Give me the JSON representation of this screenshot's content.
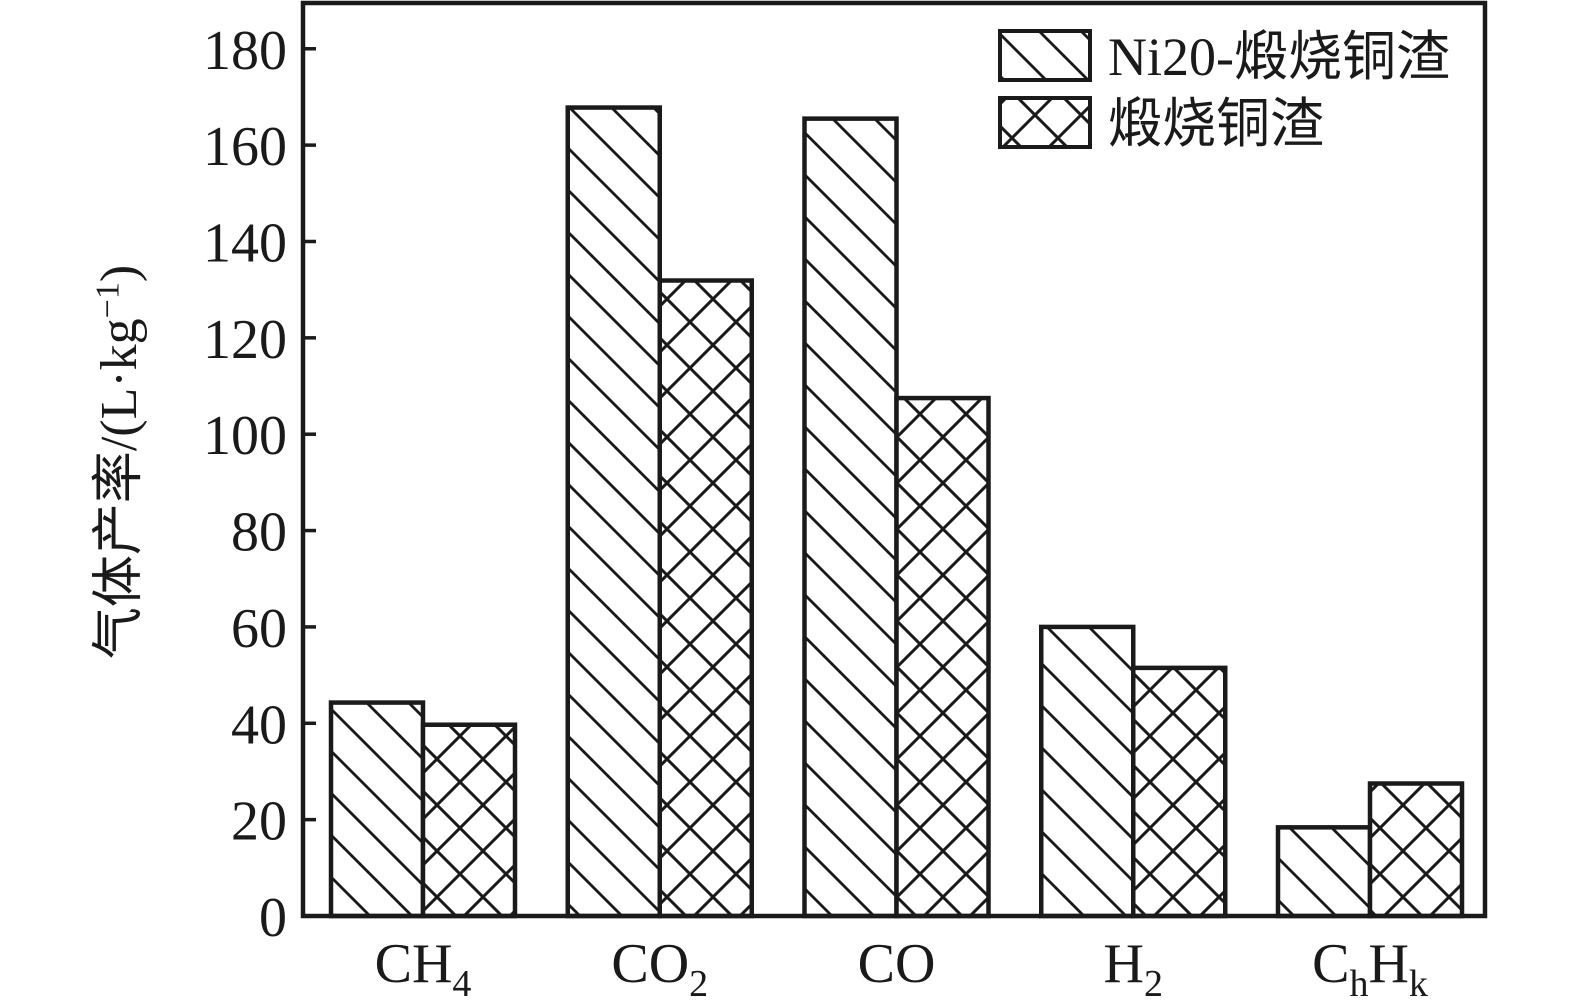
{
  "background": "#ffffff",
  "ink_color": "#1a1a1a",
  "chart_data": {
    "type": "bar",
    "title": "",
    "ylabel": "气体产率/(L·kg−1)",
    "ylabel_parts": [
      {
        "t": "气体产率/(L·kg"
      },
      {
        "t": "−1",
        "sup": true
      },
      {
        "t": ")"
      }
    ],
    "categories": [
      "CH4",
      "CO2",
      "CO",
      "H2",
      "ChHk"
    ],
    "category_parts": [
      [
        {
          "t": "CH"
        },
        {
          "t": "4",
          "sub": true
        }
      ],
      [
        {
          "t": "CO"
        },
        {
          "t": "2",
          "sub": true
        }
      ],
      [
        {
          "t": "CO"
        }
      ],
      [
        {
          "t": "H"
        },
        {
          "t": "2",
          "sub": true
        }
      ],
      [
        {
          "t": "C"
        },
        {
          "t": "h",
          "sub": true
        },
        {
          "t": "H"
        },
        {
          "t": "k",
          "sub": true
        }
      ]
    ],
    "series": [
      {
        "name": "Ni20-煅烧铜渣",
        "hatch": "diagonal",
        "values": [
          44.3,
          167.8,
          165.5,
          60.0,
          18.4
        ]
      },
      {
        "name": "煅烧铜渣",
        "hatch": "cross",
        "values": [
          39.7,
          131.9,
          107.5,
          51.5,
          27.5
        ]
      }
    ],
    "ylim": [
      0,
      190
    ],
    "yticks": [
      0,
      20,
      40,
      60,
      80,
      100,
      120,
      140,
      160,
      180
    ],
    "grid": false,
    "legend_position": "top-right"
  }
}
